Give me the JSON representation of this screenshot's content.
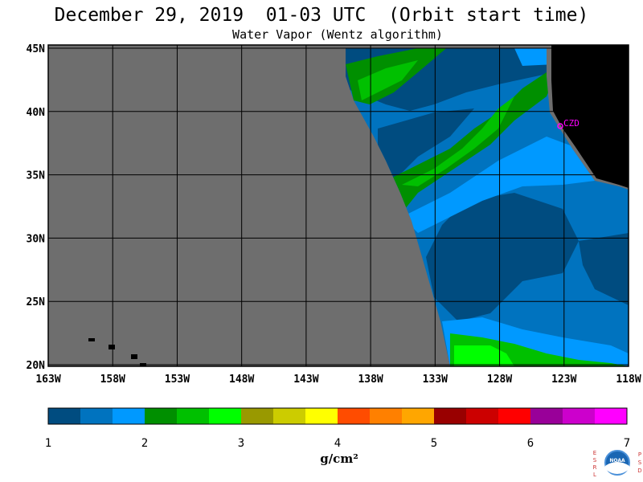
{
  "header": {
    "title": "December 29, 2019  01-03 UTC  (Orbit start time)",
    "subtitle": "Water Vapor (Wentz algorithm)"
  },
  "map": {
    "lon_labels": [
      "163W",
      "158W",
      "153W",
      "148W",
      "143W",
      "138W",
      "133W",
      "128W",
      "123W",
      "118W"
    ],
    "lat_labels": [
      "45N",
      "40N",
      "35N",
      "30N",
      "25N",
      "20N"
    ],
    "station_label": "CZD",
    "colors": {
      "no_data": "#6e6e6e",
      "land": "#000000",
      "grid": "#000000",
      "station": "#ff00ff"
    }
  },
  "colorbar": {
    "tick_labels": [
      "1",
      "2",
      "3",
      "4",
      "5",
      "6",
      "7"
    ],
    "unit": "g/cm²",
    "colors": [
      "#004c80",
      "#0073bf",
      "#0099ff",
      "#008f00",
      "#00c000",
      "#00ff00",
      "#999900",
      "#cccc00",
      "#ffff00",
      "#ff4c00",
      "#ff8000",
      "#ffa600",
      "#990000",
      "#cc0000",
      "#ff0000",
      "#990099",
      "#cc00cc",
      "#ff00ff"
    ]
  },
  "logo": {
    "name": "noaa-logo",
    "left_letters": "ESRL",
    "right_letters": "PSD",
    "center_text": "NOAA"
  }
}
